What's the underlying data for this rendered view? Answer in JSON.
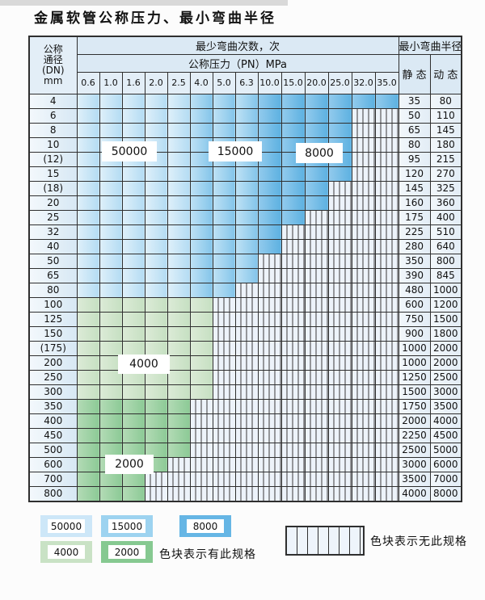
{
  "title": "金属软管公称压力、最小弯曲半径",
  "table": {
    "header": {
      "dn_label_lines": [
        "公称",
        "通径",
        "(DN)",
        "mm"
      ],
      "bend_cycles_label": "最少弯曲次数，次",
      "pressure_label": "公称压力（PN）MPa",
      "radius_label": "最小弯曲半径",
      "static_label": "静 态",
      "dynamic_label": "动 态",
      "pressures": [
        "0.6",
        "1.0",
        "1.6",
        "2.0",
        "2.5",
        "4.0",
        "5.0",
        "6.3",
        "10.0",
        "15.0",
        "20.0",
        "25.0",
        "32.0",
        "35.0"
      ]
    },
    "blue_zone_columns": {
      "z50000_pressures": [
        "0.6",
        "1.0",
        "1.6",
        "2.0",
        "2.5"
      ],
      "z15000_pressures": [
        "4.0",
        "5.0",
        "6.3"
      ],
      "z8000_pressures": [
        "10.0",
        "15.0",
        "20.0",
        "25.0",
        "32.0",
        "35.0"
      ]
    },
    "rows": [
      {
        "dn": "4",
        "colored": 14,
        "palette": "blue",
        "static": "35",
        "dynamic": "80"
      },
      {
        "dn": "6",
        "colored": 12,
        "palette": "blue",
        "static": "50",
        "dynamic": "110"
      },
      {
        "dn": "8",
        "colored": 12,
        "palette": "blue",
        "static": "65",
        "dynamic": "145"
      },
      {
        "dn": "10",
        "colored": 12,
        "palette": "blue",
        "static": "80",
        "dynamic": "180"
      },
      {
        "dn": "(12)",
        "colored": 12,
        "palette": "blue",
        "static": "95",
        "dynamic": "215"
      },
      {
        "dn": "15",
        "colored": 12,
        "palette": "blue",
        "static": "120",
        "dynamic": "270"
      },
      {
        "dn": "(18)",
        "colored": 11,
        "palette": "blue",
        "static": "145",
        "dynamic": "325"
      },
      {
        "dn": "20",
        "colored": 11,
        "palette": "blue",
        "static": "160",
        "dynamic": "360"
      },
      {
        "dn": "25",
        "colored": 10,
        "palette": "blue",
        "static": "175",
        "dynamic": "400"
      },
      {
        "dn": "32",
        "colored": 9,
        "palette": "blue",
        "static": "225",
        "dynamic": "510"
      },
      {
        "dn": "40",
        "colored": 9,
        "palette": "blue",
        "static": "280",
        "dynamic": "640"
      },
      {
        "dn": "50",
        "colored": 8,
        "palette": "blue",
        "static": "350",
        "dynamic": "800"
      },
      {
        "dn": "65",
        "colored": 8,
        "palette": "blue",
        "static": "390",
        "dynamic": "845"
      },
      {
        "dn": "80",
        "colored": 7,
        "palette": "blue",
        "static": "480",
        "dynamic": "1000"
      },
      {
        "dn": "100",
        "colored": 6,
        "palette": "green4000",
        "static": "600",
        "dynamic": "1200"
      },
      {
        "dn": "125",
        "colored": 6,
        "palette": "green4000",
        "static": "750",
        "dynamic": "1500"
      },
      {
        "dn": "150",
        "colored": 6,
        "palette": "green4000",
        "static": "900",
        "dynamic": "1800"
      },
      {
        "dn": "(175)",
        "colored": 6,
        "palette": "green4000",
        "static": "1000",
        "dynamic": "2000"
      },
      {
        "dn": "200",
        "colored": 6,
        "palette": "green4000",
        "static": "1000",
        "dynamic": "2000"
      },
      {
        "dn": "250",
        "colored": 6,
        "palette": "green4000",
        "static": "1250",
        "dynamic": "2500"
      },
      {
        "dn": "300",
        "colored": 6,
        "palette": "green4000",
        "static": "1500",
        "dynamic": "3000"
      },
      {
        "dn": "350",
        "colored": 5,
        "palette": "green2000",
        "static": "1750",
        "dynamic": "3500"
      },
      {
        "dn": "400",
        "colored": 5,
        "palette": "green2000",
        "static": "2000",
        "dynamic": "4000"
      },
      {
        "dn": "450",
        "colored": 5,
        "palette": "green2000",
        "static": "2250",
        "dynamic": "4500"
      },
      {
        "dn": "500",
        "colored": 5,
        "palette": "green2000",
        "static": "2500",
        "dynamic": "5000"
      },
      {
        "dn": "600",
        "colored": 4,
        "palette": "green2000",
        "static": "3000",
        "dynamic": "6000"
      },
      {
        "dn": "700",
        "colored": 3,
        "palette": "green2000",
        "static": "3500",
        "dynamic": "7000"
      },
      {
        "dn": "800",
        "colored": 3,
        "palette": "green2000",
        "static": "4000",
        "dynamic": "8000"
      }
    ],
    "zone_overlays": [
      {
        "label": "50000"
      },
      {
        "label": "15000"
      },
      {
        "label": "8000"
      },
      {
        "label": "4000"
      },
      {
        "label": "2000"
      }
    ]
  },
  "legend": {
    "items": [
      {
        "label": "50000",
        "color": "#cde7f8"
      },
      {
        "label": "15000",
        "color": "#9dd3f0"
      },
      {
        "label": "8000",
        "color": "#66b6e5"
      },
      {
        "label": "4000",
        "color": "#c9e2c5"
      },
      {
        "label": "2000",
        "color": "#86c991"
      }
    ],
    "has_spec_note": "色块表示有此规格",
    "no_spec_note": "色块表示无此规格"
  },
  "colors": {
    "grid_line": "#2f2f2f",
    "header_bg": "#dbe9f4",
    "zone_50000": "#b4dcf3",
    "zone_15000": "#84c5ea",
    "zone_8000": "#5db1e1",
    "zone_4000": "#c6e0c2",
    "zone_2000": "#8cca96",
    "no_spec_bg": "#edf3fa"
  }
}
